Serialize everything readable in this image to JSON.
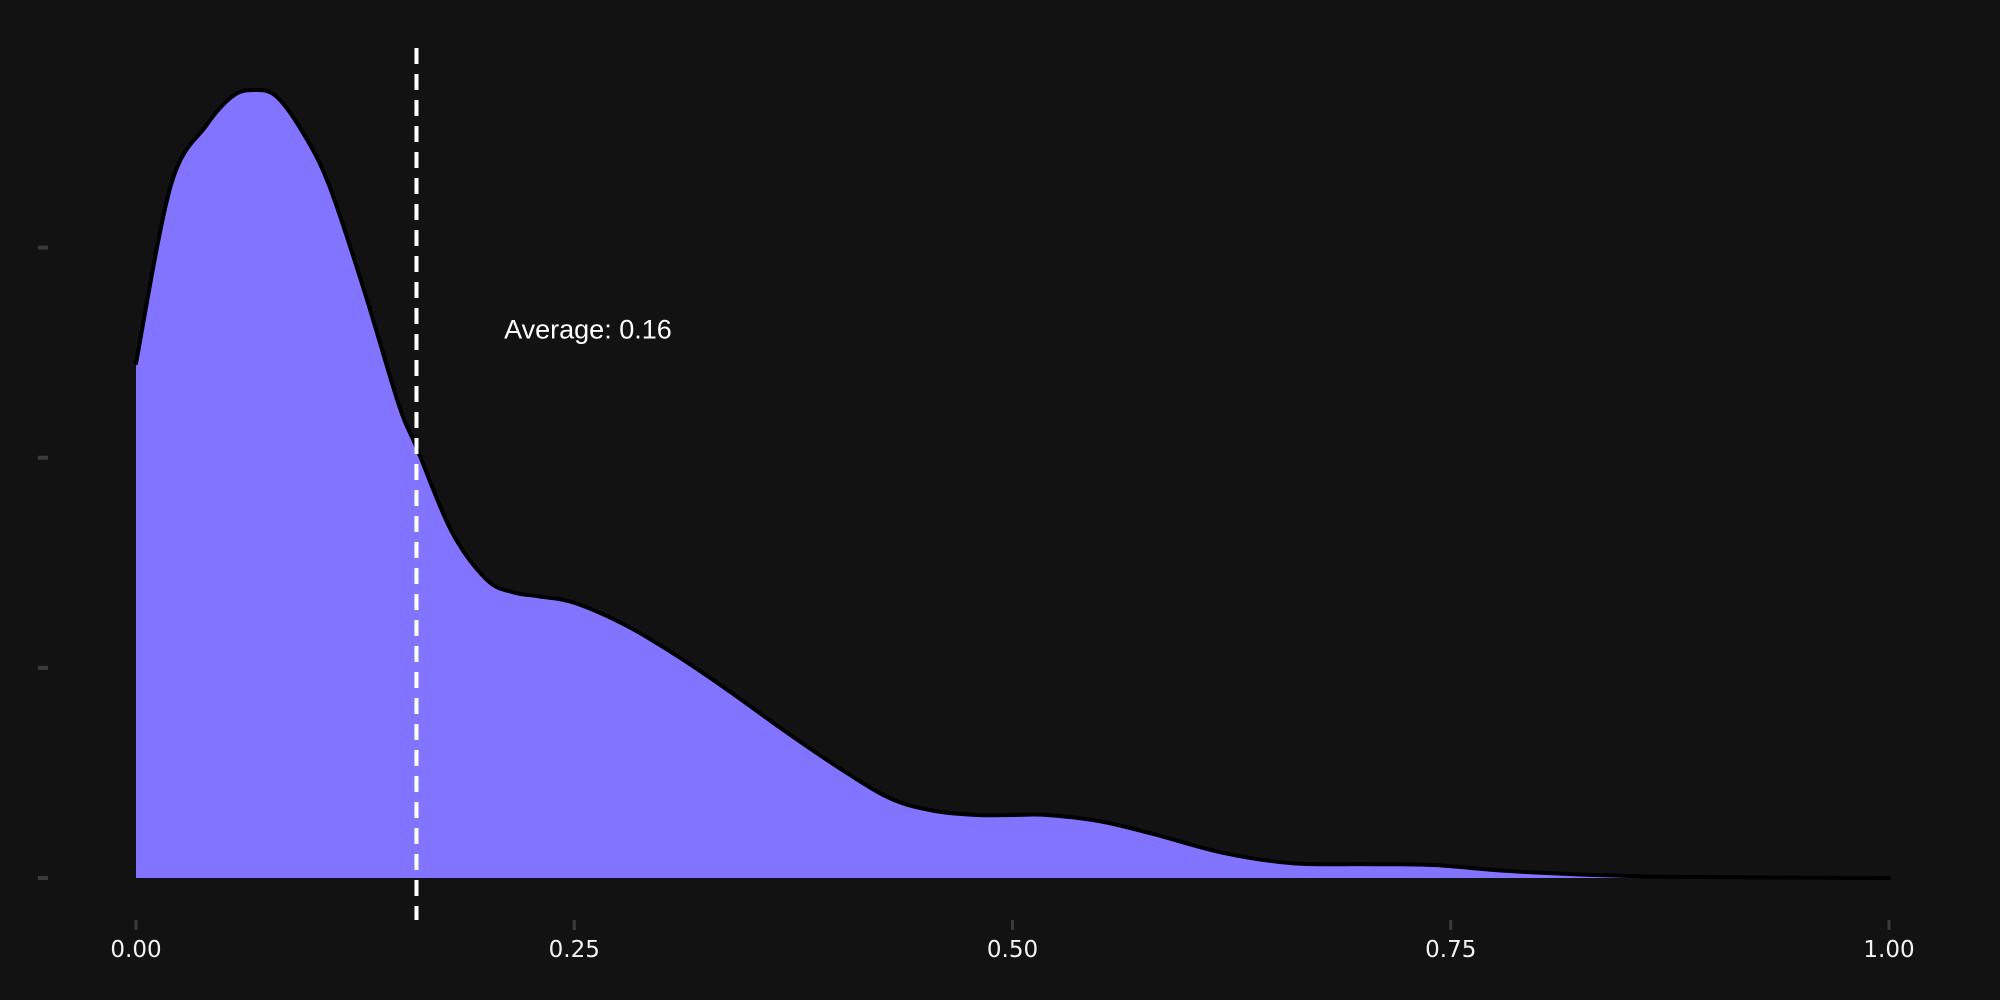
{
  "chart_data": {
    "type": "area",
    "x_ticks": [
      "0.00",
      "0.25",
      "0.50",
      "0.75",
      "1.00"
    ],
    "xlim": [
      0,
      1
    ],
    "y_ticks": [
      0,
      1,
      2,
      3
    ],
    "ylim": [
      0,
      3.75
    ],
    "show_y_tick_labels": false,
    "grid": false,
    "series": [
      {
        "color": "#8274FE",
        "x": [
          0.0,
          0.02,
          0.04,
          0.055,
          0.067,
          0.08,
          0.095,
          0.11,
          0.13,
          0.15,
          0.16,
          0.18,
          0.2,
          0.215,
          0.23,
          0.25,
          0.28,
          0.31,
          0.34,
          0.37,
          0.4,
          0.43,
          0.455,
          0.48,
          0.5,
          0.52,
          0.55,
          0.58,
          0.62,
          0.66,
          0.7,
          0.74,
          0.78,
          0.82,
          0.86,
          0.9,
          0.95,
          1.0
        ],
        "y": [
          2.45,
          3.3,
          3.58,
          3.72,
          3.75,
          3.72,
          3.55,
          3.3,
          2.8,
          2.25,
          2.05,
          1.65,
          1.42,
          1.36,
          1.34,
          1.31,
          1.2,
          1.05,
          0.88,
          0.7,
          0.53,
          0.38,
          0.32,
          0.3,
          0.3,
          0.3,
          0.27,
          0.21,
          0.12,
          0.07,
          0.066,
          0.062,
          0.035,
          0.018,
          0.008,
          0.004,
          0.002,
          0.0
        ]
      }
    ],
    "mean": 0.16,
    "annotations": [
      {
        "text": "Average: 0.16",
        "x": 0.21,
        "y": 2.5
      }
    ],
    "line_color": "#000000",
    "mean_line_color": "#ffffff",
    "background": "#121212"
  }
}
